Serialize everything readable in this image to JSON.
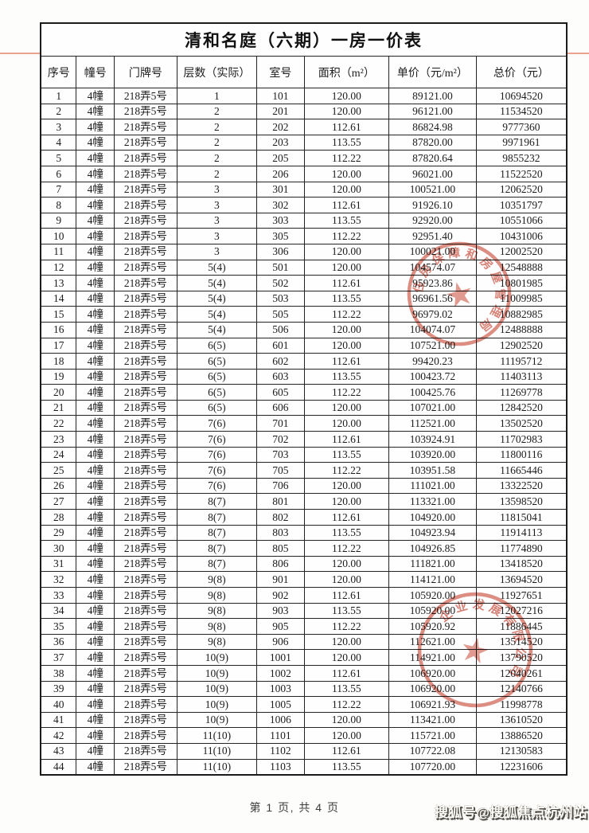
{
  "page": {
    "title": "清和名庭（六期）一房一价表",
    "footer": "第 1 页, 共 4 页",
    "watermark": "搜狐号@搜狐焦点杭州站"
  },
  "table": {
    "headers": [
      "序号",
      "幢号",
      "门牌号",
      "层数（实际）",
      "室号",
      "面积（m²）",
      "单价（元/m²）",
      "总价（元）"
    ],
    "rows": [
      [
        "1",
        "4幢",
        "218弄5号",
        "1",
        "101",
        "120.00",
        "89121.00",
        "10694520"
      ],
      [
        "2",
        "4幢",
        "218弄5号",
        "2",
        "201",
        "120.00",
        "96121.00",
        "11534520"
      ],
      [
        "3",
        "4幢",
        "218弄5号",
        "2",
        "202",
        "112.61",
        "86824.98",
        "9777360"
      ],
      [
        "4",
        "4幢",
        "218弄5号",
        "2",
        "203",
        "113.55",
        "87820.00",
        "9971961"
      ],
      [
        "5",
        "4幢",
        "218弄5号",
        "2",
        "205",
        "112.22",
        "87820.64",
        "9855232"
      ],
      [
        "6",
        "4幢",
        "218弄5号",
        "2",
        "206",
        "120.00",
        "96021.00",
        "11522520"
      ],
      [
        "7",
        "4幢",
        "218弄5号",
        "3",
        "301",
        "120.00",
        "100521.00",
        "12062520"
      ],
      [
        "8",
        "4幢",
        "218弄5号",
        "3",
        "302",
        "112.61",
        "91926.10",
        "10351797"
      ],
      [
        "9",
        "4幢",
        "218弄5号",
        "3",
        "303",
        "113.55",
        "92920.00",
        "10551066"
      ],
      [
        "10",
        "4幢",
        "218弄5号",
        "3",
        "305",
        "112.22",
        "92951.40",
        "10431006"
      ],
      [
        "11",
        "4幢",
        "218弄5号",
        "3",
        "306",
        "120.00",
        "100021.00",
        "12002520"
      ],
      [
        "12",
        "4幢",
        "218弄5号",
        "5(4)",
        "501",
        "120.00",
        "104574.07",
        "12548888"
      ],
      [
        "13",
        "4幢",
        "218弄5号",
        "5(4)",
        "502",
        "112.61",
        "95923.86",
        "10801985"
      ],
      [
        "14",
        "4幢",
        "218弄5号",
        "5(4)",
        "503",
        "113.55",
        "96961.56",
        "11009985"
      ],
      [
        "15",
        "4幢",
        "218弄5号",
        "5(4)",
        "505",
        "112.22",
        "96979.02",
        "10882985"
      ],
      [
        "16",
        "4幢",
        "218弄5号",
        "5(4)",
        "506",
        "120.00",
        "104074.07",
        "12488888"
      ],
      [
        "17",
        "4幢",
        "218弄5号",
        "6(5)",
        "601",
        "120.00",
        "107521.00",
        "12902520"
      ],
      [
        "18",
        "4幢",
        "218弄5号",
        "6(5)",
        "602",
        "112.61",
        "99420.23",
        "11195712"
      ],
      [
        "19",
        "4幢",
        "218弄5号",
        "6(5)",
        "603",
        "113.55",
        "100423.72",
        "11403113"
      ],
      [
        "20",
        "4幢",
        "218弄5号",
        "6(5)",
        "605",
        "112.22",
        "100425.76",
        "11269778"
      ],
      [
        "21",
        "4幢",
        "218弄5号",
        "6(5)",
        "606",
        "120.00",
        "107021.00",
        "12842520"
      ],
      [
        "22",
        "4幢",
        "218弄5号",
        "7(6)",
        "701",
        "120.00",
        "112521.00",
        "13502520"
      ],
      [
        "23",
        "4幢",
        "218弄5号",
        "7(6)",
        "702",
        "112.61",
        "103924.91",
        "11702983"
      ],
      [
        "24",
        "4幢",
        "218弄5号",
        "7(6)",
        "703",
        "113.55",
        "103920.00",
        "11800116"
      ],
      [
        "25",
        "4幢",
        "218弄5号",
        "7(6)",
        "705",
        "112.22",
        "103951.58",
        "11665446"
      ],
      [
        "26",
        "4幢",
        "218弄5号",
        "7(6)",
        "706",
        "120.00",
        "111021.00",
        "13322520"
      ],
      [
        "27",
        "4幢",
        "218弄5号",
        "8(7)",
        "801",
        "120.00",
        "113321.00",
        "13598520"
      ],
      [
        "28",
        "4幢",
        "218弄5号",
        "8(7)",
        "802",
        "112.61",
        "104920.00",
        "11815041"
      ],
      [
        "29",
        "4幢",
        "218弄5号",
        "8(7)",
        "803",
        "113.55",
        "104923.94",
        "11914113"
      ],
      [
        "30",
        "4幢",
        "218弄5号",
        "8(7)",
        "805",
        "112.22",
        "104926.85",
        "11774890"
      ],
      [
        "31",
        "4幢",
        "218弄5号",
        "8(7)",
        "806",
        "120.00",
        "111821.00",
        "13418520"
      ],
      [
        "32",
        "4幢",
        "218弄5号",
        "9(8)",
        "901",
        "120.00",
        "114121.00",
        "13694520"
      ],
      [
        "33",
        "4幢",
        "218弄5号",
        "9(8)",
        "902",
        "112.61",
        "105920.00",
        "11927651"
      ],
      [
        "34",
        "4幢",
        "218弄5号",
        "9(8)",
        "903",
        "113.55",
        "105920.00",
        "12027216"
      ],
      [
        "35",
        "4幢",
        "218弄5号",
        "9(8)",
        "905",
        "112.22",
        "105920.92",
        "11886445"
      ],
      [
        "36",
        "4幢",
        "218弄5号",
        "9(8)",
        "906",
        "120.00",
        "112621.00",
        "13514520"
      ],
      [
        "37",
        "4幢",
        "218弄5号",
        "10(9)",
        "1001",
        "120.00",
        "114921.00",
        "13790520"
      ],
      [
        "38",
        "4幢",
        "218弄5号",
        "10(9)",
        "1002",
        "112.61",
        "106920.00",
        "12040261"
      ],
      [
        "39",
        "4幢",
        "218弄5号",
        "10(9)",
        "1003",
        "113.55",
        "106920.00",
        "12140766"
      ],
      [
        "40",
        "4幢",
        "218弄5号",
        "10(9)",
        "1005",
        "112.22",
        "106921.93",
        "11998778"
      ],
      [
        "41",
        "4幢",
        "218弄5号",
        "10(9)",
        "1006",
        "120.00",
        "113421.00",
        "13610520"
      ],
      [
        "42",
        "4幢",
        "218弄5号",
        "11(10)",
        "1101",
        "120.00",
        "115721.00",
        "13886520"
      ],
      [
        "43",
        "4幢",
        "218弄5号",
        "11(10)",
        "1102",
        "112.61",
        "107722.08",
        "12130583"
      ],
      [
        "44",
        "4幢",
        "218弄5号",
        "11(10)",
        "1103",
        "113.55",
        "107720.00",
        "12231606"
      ]
    ]
  },
  "stamps": [
    {
      "name": "housing-authority-seal",
      "star": "★",
      "arc_text": "住房保障和房屋管理局",
      "color": "#c84a38"
    },
    {
      "name": "company-seal",
      "star": "★",
      "arc_text": "企业发展有限公司",
      "color": "#c84a38"
    }
  ],
  "colors": {
    "stamp_red": "#c84a38",
    "scan_red_line": "#e8917c",
    "table_border": "#1b1b1b",
    "page_background": "#fdfdfc"
  }
}
